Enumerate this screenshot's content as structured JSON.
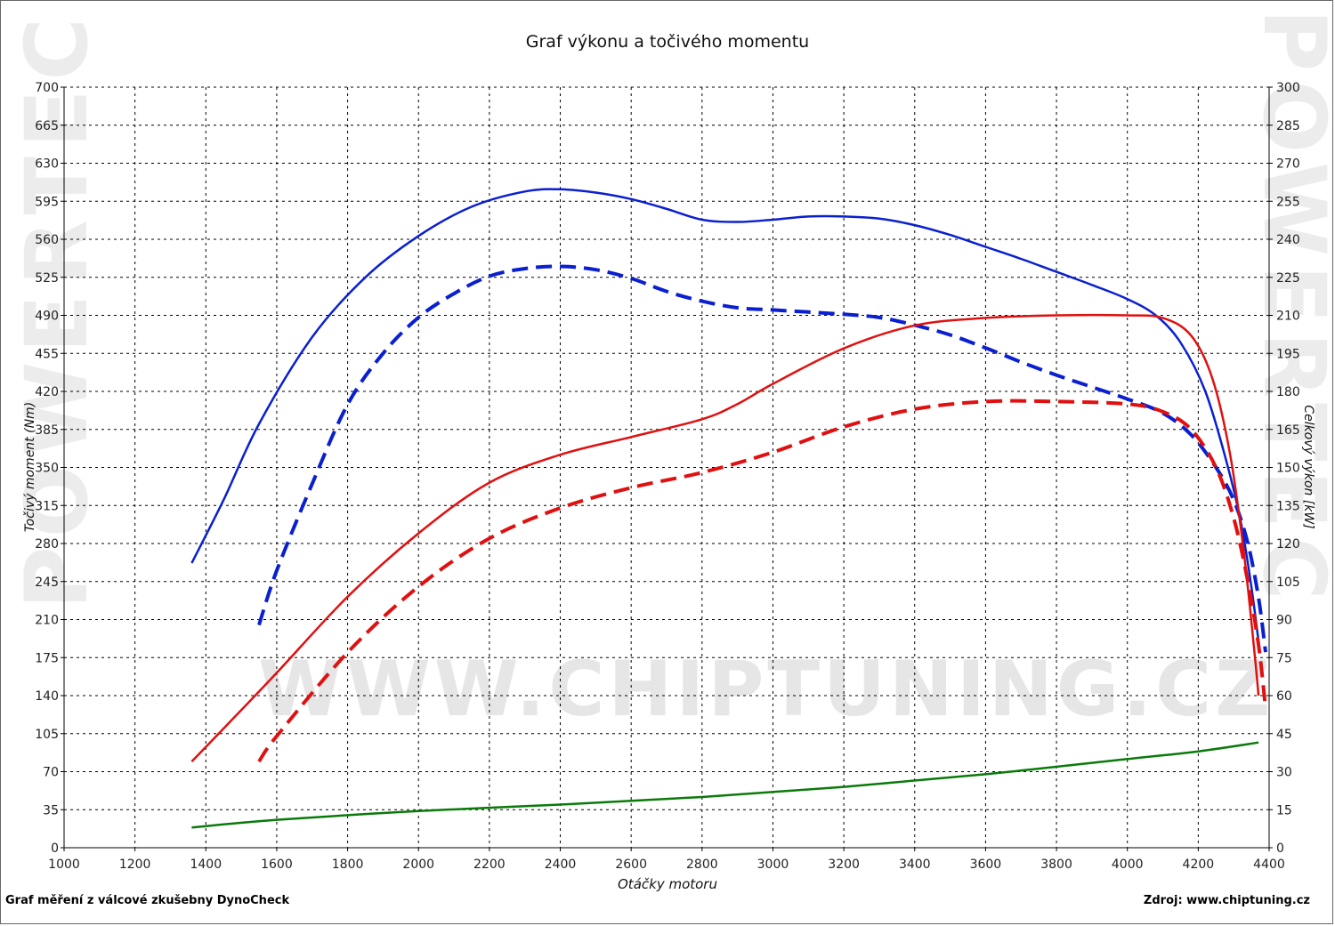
{
  "watermark": {
    "side": "POWERTEC",
    "center": "WWW.CHIPTUNING.CZ"
  },
  "footer": {
    "left": "Graf měření z válcové zkušebny DynoCheck",
    "right": "Zdroj: www.chiptuning.cz"
  },
  "colors": {
    "torque": "#0a1fd0",
    "power": "#e01010",
    "loss": "#0a7a0a",
    "grid": "#000000"
  },
  "chart_data": {
    "type": "line",
    "title": "Graf výkonu a točivého momentu",
    "xlabel": "Otáčky motoru",
    "ylabel_left": "Točivý moment (Nm)",
    "ylabel_right": "Celkový výkon [kW]",
    "xlim": [
      1000,
      4400
    ],
    "ylim_left": [
      0,
      700
    ],
    "ylim_right": [
      0,
      300
    ],
    "xticks": [
      1000,
      1200,
      1400,
      1600,
      1800,
      2000,
      2200,
      2400,
      2600,
      2800,
      3000,
      3200,
      3400,
      3600,
      3800,
      4000,
      4200,
      4400
    ],
    "yticks_left": [
      0,
      35,
      70,
      105,
      140,
      175,
      210,
      245,
      280,
      315,
      350,
      385,
      420,
      455,
      490,
      525,
      560,
      595,
      630,
      665,
      700
    ],
    "yticks_right": [
      0,
      15,
      30,
      45,
      60,
      75,
      90,
      105,
      120,
      135,
      150,
      165,
      180,
      195,
      210,
      225,
      240,
      255,
      270,
      285,
      300
    ],
    "grid": true,
    "series": [
      {
        "axis": "left",
        "color": "#0a1fd0",
        "dash": false,
        "points": [
          [
            1360,
            262
          ],
          [
            1450,
            320
          ],
          [
            1550,
            390
          ],
          [
            1700,
            470
          ],
          [
            1850,
            525
          ],
          [
            2000,
            563
          ],
          [
            2150,
            590
          ],
          [
            2300,
            604
          ],
          [
            2400,
            606
          ],
          [
            2500,
            603
          ],
          [
            2600,
            597
          ],
          [
            2700,
            588
          ],
          [
            2800,
            578
          ],
          [
            2900,
            576
          ],
          [
            3000,
            578
          ],
          [
            3100,
            581
          ],
          [
            3200,
            581
          ],
          [
            3300,
            579
          ],
          [
            3400,
            573
          ],
          [
            3500,
            564
          ],
          [
            3600,
            553
          ],
          [
            3700,
            542
          ],
          [
            3800,
            530
          ],
          [
            3900,
            518
          ],
          [
            4000,
            505
          ],
          [
            4080,
            490
          ],
          [
            4150,
            465
          ],
          [
            4220,
            420
          ],
          [
            4280,
            355
          ],
          [
            4320,
            300
          ],
          [
            4350,
            240
          ],
          [
            4370,
            190
          ]
        ]
      },
      {
        "axis": "left",
        "color": "#0a1fd0",
        "dash": true,
        "points": [
          [
            1550,
            205
          ],
          [
            1600,
            255
          ],
          [
            1700,
            335
          ],
          [
            1800,
            408
          ],
          [
            1900,
            455
          ],
          [
            2000,
            488
          ],
          [
            2100,
            510
          ],
          [
            2200,
            526
          ],
          [
            2300,
            533
          ],
          [
            2400,
            535
          ],
          [
            2500,
            532
          ],
          [
            2600,
            524
          ],
          [
            2700,
            512
          ],
          [
            2800,
            503
          ],
          [
            2900,
            497
          ],
          [
            3000,
            495
          ],
          [
            3100,
            493
          ],
          [
            3200,
            491
          ],
          [
            3300,
            488
          ],
          [
            3400,
            481
          ],
          [
            3500,
            472
          ],
          [
            3600,
            460
          ],
          [
            3700,
            447
          ],
          [
            3800,
            435
          ],
          [
            3900,
            424
          ],
          [
            4000,
            413
          ],
          [
            4100,
            400
          ],
          [
            4180,
            380
          ],
          [
            4250,
            350
          ],
          [
            4300,
            320
          ],
          [
            4340,
            280
          ],
          [
            4370,
            230
          ],
          [
            4390,
            180
          ]
        ]
      },
      {
        "axis": "right",
        "color": "#e01010",
        "dash": false,
        "points": [
          [
            1360,
            34
          ],
          [
            1450,
            47
          ],
          [
            1600,
            69
          ],
          [
            1800,
            99
          ],
          [
            2000,
            124
          ],
          [
            2200,
            144
          ],
          [
            2400,
            155
          ],
          [
            2600,
            162
          ],
          [
            2800,
            169
          ],
          [
            2900,
            175
          ],
          [
            3000,
            183
          ],
          [
            3200,
            197
          ],
          [
            3400,
            206
          ],
          [
            3600,
            209
          ],
          [
            3800,
            210
          ],
          [
            4000,
            210
          ],
          [
            4100,
            209
          ],
          [
            4180,
            202
          ],
          [
            4240,
            185
          ],
          [
            4290,
            155
          ],
          [
            4330,
            115
          ],
          [
            4360,
            75
          ],
          [
            4370,
            60
          ]
        ]
      },
      {
        "axis": "right",
        "color": "#e01010",
        "dash": true,
        "points": [
          [
            1550,
            34
          ],
          [
            1600,
            44
          ],
          [
            1800,
            77
          ],
          [
            2000,
            103
          ],
          [
            2200,
            122
          ],
          [
            2400,
            134
          ],
          [
            2600,
            142
          ],
          [
            2800,
            148
          ],
          [
            3000,
            156
          ],
          [
            3200,
            166
          ],
          [
            3400,
            173
          ],
          [
            3600,
            176
          ],
          [
            3800,
            176
          ],
          [
            4000,
            175
          ],
          [
            4100,
            172
          ],
          [
            4180,
            165
          ],
          [
            4250,
            150
          ],
          [
            4300,
            130
          ],
          [
            4340,
            105
          ],
          [
            4370,
            80
          ],
          [
            4390,
            55
          ]
        ]
      },
      {
        "axis": "right",
        "color": "#0a7a0a",
        "dash": false,
        "points": [
          [
            1360,
            8
          ],
          [
            1600,
            11
          ],
          [
            2000,
            14.5
          ],
          [
            2400,
            17
          ],
          [
            2800,
            20
          ],
          [
            3200,
            24
          ],
          [
            3600,
            29
          ],
          [
            4000,
            35
          ],
          [
            4200,
            38
          ],
          [
            4370,
            41.5
          ]
        ]
      }
    ]
  }
}
